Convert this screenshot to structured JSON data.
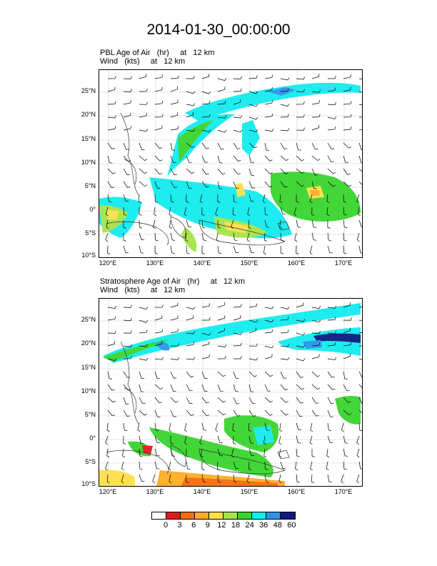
{
  "title": "2014-01-30_00:00:00",
  "panels": [
    {
      "line1": "PBL Age of Air   (hr)     at   12 km",
      "line2": "Wind   (kts)     at   12 km",
      "lat_labels": [
        "25°N",
        "20°N",
        "15°N",
        "10°N",
        "5°N",
        "0°",
        "5°S",
        "10°S"
      ],
      "lon_labels": [
        "120°E",
        "130°E",
        "140°E",
        "150°E",
        "160°E",
        "170°E"
      ]
    },
    {
      "line1": "Stratosphere Age of Air   (hr)     at   12 km",
      "line2": "Wind   (kts)     at   12 km",
      "lat_labels": [
        "25°N",
        "20°N",
        "15°N",
        "10°N",
        "5°N",
        "0°",
        "5°S",
        "10°S"
      ],
      "lon_labels": [
        "120°E",
        "130°E",
        "140°E",
        "150°E",
        "160°E",
        "170°E"
      ]
    }
  ],
  "colorbar": {
    "colors": [
      "#ffffff",
      "#e31a1c",
      "#f46d0f",
      "#fdae28",
      "#fde04a",
      "#a7e34a",
      "#39d42e",
      "#12ecef",
      "#2c93e8",
      "#0b1b7e"
    ],
    "labels": [
      "0",
      "3",
      "6",
      "9",
      "12",
      "18",
      "24",
      "36",
      "48",
      "60"
    ]
  }
}
